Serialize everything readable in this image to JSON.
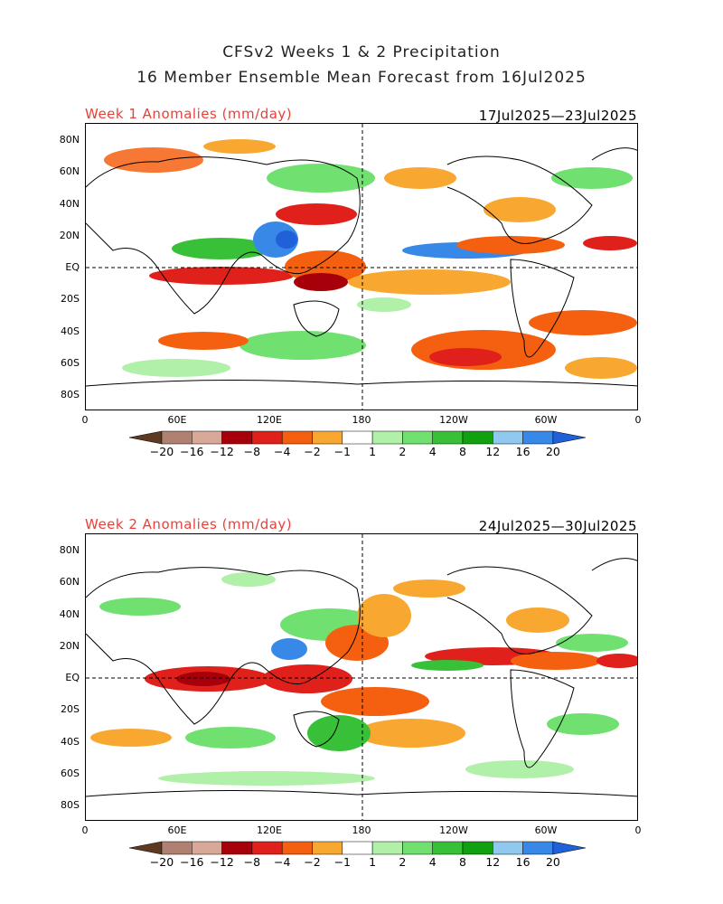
{
  "header": {
    "title_line1": "CFSv2 Weeks 1 & 2 Precipitation",
    "title_line2": "16 Member Ensemble Mean Forecast from 16Jul2025"
  },
  "panels": [
    {
      "label": "Week 1 Anomalies (mm/day)",
      "dates": "17Jul2025—23Jul2025"
    },
    {
      "label": "Week 2 Anomalies (mm/day)",
      "dates": "24Jul2025—30Jul2025"
    }
  ],
  "axes": {
    "lat_labels": [
      "80N",
      "60N",
      "40N",
      "20N",
      "EQ",
      "20S",
      "40S",
      "60S",
      "80S"
    ],
    "lon_labels": [
      "0",
      "60E",
      "120E",
      "180",
      "120W",
      "60W",
      "0"
    ]
  },
  "colorbar": {
    "labels": [
      "−20",
      "−16",
      "−12",
      "−8",
      "−4",
      "−2",
      "−1",
      "1",
      "2",
      "4",
      "8",
      "12",
      "16",
      "20"
    ],
    "colors": [
      "#5e3a22",
      "#b08070",
      "#d8a898",
      "#a8000a",
      "#e0201a",
      "#f46010",
      "#f8a830",
      "#ffffff",
      "#b0f0a8",
      "#70e070",
      "#38c038",
      "#10a010",
      "#90c8f0",
      "#3888e8",
      "#2060d8"
    ]
  }
}
